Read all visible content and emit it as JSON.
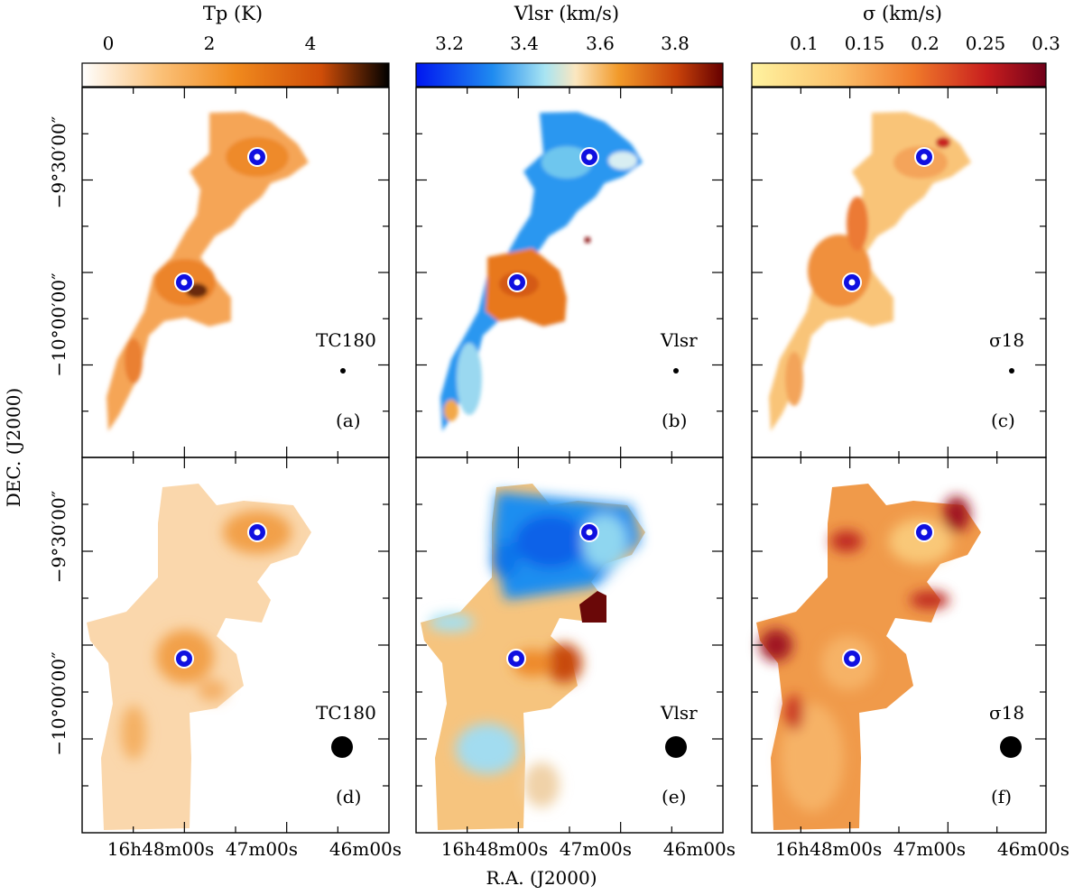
{
  "axes": {
    "ylabel": "DEC.  (J2000)",
    "xlabel": "R.A.  (J2000)",
    "y_ticks": [
      {
        "main": "−9°30′00″",
        "row": "top"
      },
      {
        "main": "−10°00′00″",
        "row": "top"
      },
      {
        "main": "−10°00′00″",
        "row": "bottom"
      },
      {
        "main": "−9°30′00″",
        "row": "bottom"
      }
    ],
    "x_ticks": [
      "16h48m00s",
      "47m00s",
      "46m00s"
    ]
  },
  "colorbars": [
    {
      "title": "Tp  (K)",
      "ticks": [
        "0",
        "2",
        "4"
      ],
      "colors": [
        "#ffffff",
        "#fbc27a",
        "#f08a1e",
        "#cf4d08",
        "#000000"
      ]
    },
    {
      "title": "Vlsr  (km/s)",
      "ticks": [
        "3.2",
        "3.4",
        "3.6",
        "3.8"
      ],
      "colors": [
        "#0016f0",
        "#1f8bf0",
        "#a8e4f2",
        "#fbe7c0",
        "#f29a2a",
        "#c8420a",
        "#650000"
      ]
    },
    {
      "title": "σ  (km/s)",
      "ticks": [
        "0.1",
        "0.15",
        "0.2",
        "0.25",
        "0.3"
      ],
      "colors": [
        "#fff3a0",
        "#fbc06a",
        "#f07a2a",
        "#c81e1e",
        "#70001a"
      ]
    }
  ],
  "panels": [
    {
      "id": "a",
      "label": "(a)",
      "tag": "TC180"
    },
    {
      "id": "b",
      "label": "(b)",
      "tag": "Vlsr"
    },
    {
      "id": "c",
      "label": "(c)",
      "tag": "σ18"
    },
    {
      "id": "d",
      "label": "(d)",
      "tag": "TC180"
    },
    {
      "id": "e",
      "label": "(e)",
      "tag": "Vlsr"
    },
    {
      "id": "f",
      "label": "(f)",
      "tag": "σ18"
    }
  ],
  "colors": {
    "marker_ring": "#1010e0",
    "marker_fill": "#ffffff"
  }
}
